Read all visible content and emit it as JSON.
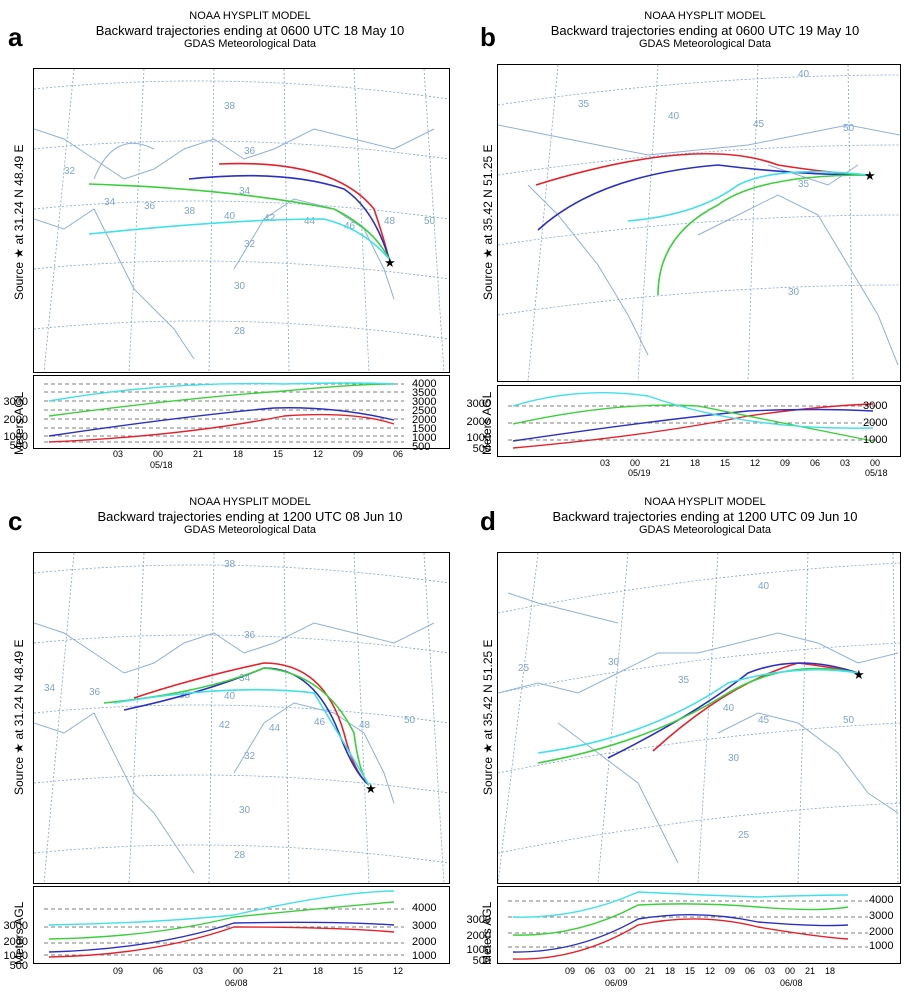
{
  "panels": [
    {
      "label": "a",
      "model": "NOAA HYSPLIT MODEL",
      "title": "Backward trajectories ending at 0600 UTC 18 May 10",
      "data_source": "GDAS Meteorological Data",
      "source_label": "Source ★ at  31.24 N  48.49 E",
      "alt_label": "Meters AGL",
      "map_labels": [
        "38",
        "36",
        "34",
        "32",
        "36",
        "38",
        "40",
        "42",
        "44",
        "46",
        "48",
        "50",
        "32",
        "30",
        "28"
      ],
      "alt_ticks_left": [
        "3000",
        "2000",
        "1000",
        "500"
      ],
      "alt_ticks_right": [
        "4000",
        "3500",
        "3000",
        "2500",
        "2000",
        "1500",
        "1000",
        "500"
      ],
      "time_ticks": [
        "03",
        "00",
        "21",
        "18",
        "15",
        "12",
        "09",
        "06"
      ],
      "date_labels": [
        "05/18"
      ]
    },
    {
      "label": "b",
      "model": "NOAA HYSPLIT MODEL",
      "title": "Backward trajectories ending at 0600 UTC 19 May 10",
      "data_source": "GDAS Meteorological Data",
      "source_label": "Source ★ at  35.42 N  51.25 E",
      "alt_label": "Meters AGL",
      "map_labels": [
        "40",
        "35",
        "40",
        "45",
        "50",
        "35",
        "30"
      ],
      "alt_ticks_left": [
        "3000",
        "2000",
        "1000",
        "500"
      ],
      "alt_ticks_right": [
        "3000",
        "2000",
        "1000"
      ],
      "time_ticks": [
        "03",
        "00",
        "21",
        "18",
        "15",
        "12",
        "09",
        "06",
        "03",
        "00"
      ],
      "date_labels": [
        "05/19",
        "05/18"
      ]
    },
    {
      "label": "c",
      "model": "NOAA HYSPLIT MODEL",
      "title": "Backward trajectories ending at 1200 UTC 08 Jun 10",
      "data_source": "GDAS Meteorological Data",
      "source_label": "Source ★ at  31.24 N  48.49 E",
      "alt_label": "Meters AGL",
      "map_labels": [
        "38",
        "36",
        "34",
        "36",
        "38",
        "40",
        "42",
        "44",
        "46",
        "48",
        "50",
        "32",
        "30",
        "28"
      ],
      "alt_ticks_left": [
        "3000",
        "2000",
        "1000",
        "500"
      ],
      "alt_ticks_right": [
        "4000",
        "3000",
        "2000",
        "1000"
      ],
      "time_ticks": [
        "09",
        "06",
        "03",
        "00",
        "21",
        "18",
        "15",
        "12"
      ],
      "date_labels": [
        "06/08"
      ]
    },
    {
      "label": "d",
      "model": "NOAA HYSPLIT MODEL",
      "title": "Backward trajectories ending at 1200 UTC 09 Jun 10",
      "data_source": "GDAS Meteorological Data",
      "source_label": "Source ★ at  35.42 N  51.25 E",
      "alt_label": "Meters AGL",
      "map_labels": [
        "40",
        "25",
        "30",
        "35",
        "40",
        "45",
        "50",
        "30",
        "25"
      ],
      "alt_ticks_left": [
        "3000",
        "2000",
        "1000",
        "500"
      ],
      "alt_ticks_right": [
        "4000",
        "3000",
        "2000",
        "1000"
      ],
      "time_ticks": [
        "09",
        "06",
        "03",
        "00",
        "21",
        "18",
        "15",
        "12",
        "09",
        "06",
        "03",
        "00",
        "21",
        "18"
      ],
      "date_labels": [
        "06/09",
        "06/08"
      ]
    }
  ],
  "colors": {
    "red": "#e8202a",
    "blue": "#2b2fc4",
    "green": "#3bd03b",
    "cyan": "#3fe0e8",
    "grid": "#7ea3d6",
    "map": "#8fb0d8"
  }
}
